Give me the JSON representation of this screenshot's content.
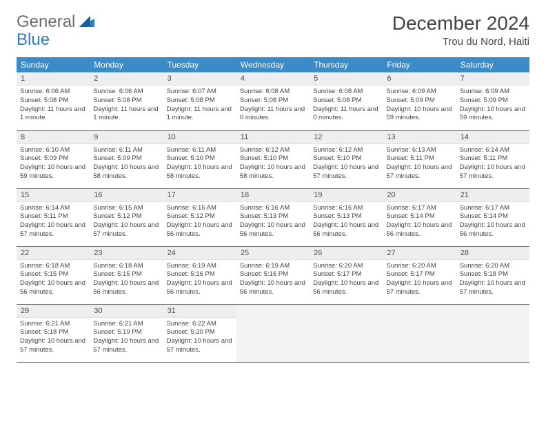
{
  "logo": {
    "text1": "General",
    "text2": "Blue"
  },
  "title": "December 2024",
  "location": "Trou du Nord, Haiti",
  "colors": {
    "header_bg": "#3b8bc9",
    "header_text": "#ffffff",
    "daynum_bg": "#eeeeee",
    "border": "#3b8bc9",
    "logo_gray": "#6c6c6c",
    "logo_blue": "#2f7fbf",
    "empty_bg": "#f3f3f3"
  },
  "weekdays": [
    "Sunday",
    "Monday",
    "Tuesday",
    "Wednesday",
    "Thursday",
    "Friday",
    "Saturday"
  ],
  "font": {
    "title_size": 28,
    "location_size": 15,
    "weekday_size": 12,
    "daynum_size": 11,
    "body_size": 9.5
  },
  "days": [
    {
      "n": 1,
      "sunrise": "6:06 AM",
      "sunset": "5:08 PM",
      "daylight": "11 hours and 1 minute."
    },
    {
      "n": 2,
      "sunrise": "6:06 AM",
      "sunset": "5:08 PM",
      "daylight": "11 hours and 1 minute."
    },
    {
      "n": 3,
      "sunrise": "6:07 AM",
      "sunset": "5:08 PM",
      "daylight": "11 hours and 1 minute."
    },
    {
      "n": 4,
      "sunrise": "6:08 AM",
      "sunset": "5:08 PM",
      "daylight": "11 hours and 0 minutes."
    },
    {
      "n": 5,
      "sunrise": "6:08 AM",
      "sunset": "5:08 PM",
      "daylight": "11 hours and 0 minutes."
    },
    {
      "n": 6,
      "sunrise": "6:09 AM",
      "sunset": "5:09 PM",
      "daylight": "10 hours and 59 minutes."
    },
    {
      "n": 7,
      "sunrise": "6:09 AM",
      "sunset": "5:09 PM",
      "daylight": "10 hours and 59 minutes."
    },
    {
      "n": 8,
      "sunrise": "6:10 AM",
      "sunset": "5:09 PM",
      "daylight": "10 hours and 59 minutes."
    },
    {
      "n": 9,
      "sunrise": "6:11 AM",
      "sunset": "5:09 PM",
      "daylight": "10 hours and 58 minutes."
    },
    {
      "n": 10,
      "sunrise": "6:11 AM",
      "sunset": "5:10 PM",
      "daylight": "10 hours and 58 minutes."
    },
    {
      "n": 11,
      "sunrise": "6:12 AM",
      "sunset": "5:10 PM",
      "daylight": "10 hours and 58 minutes."
    },
    {
      "n": 12,
      "sunrise": "6:12 AM",
      "sunset": "5:10 PM",
      "daylight": "10 hours and 57 minutes."
    },
    {
      "n": 13,
      "sunrise": "6:13 AM",
      "sunset": "5:11 PM",
      "daylight": "10 hours and 57 minutes."
    },
    {
      "n": 14,
      "sunrise": "6:14 AM",
      "sunset": "5:11 PM",
      "daylight": "10 hours and 57 minutes."
    },
    {
      "n": 15,
      "sunrise": "6:14 AM",
      "sunset": "5:11 PM",
      "daylight": "10 hours and 57 minutes."
    },
    {
      "n": 16,
      "sunrise": "6:15 AM",
      "sunset": "5:12 PM",
      "daylight": "10 hours and 57 minutes."
    },
    {
      "n": 17,
      "sunrise": "6:15 AM",
      "sunset": "5:12 PM",
      "daylight": "10 hours and 56 minutes."
    },
    {
      "n": 18,
      "sunrise": "6:16 AM",
      "sunset": "5:13 PM",
      "daylight": "10 hours and 56 minutes."
    },
    {
      "n": 19,
      "sunrise": "6:16 AM",
      "sunset": "5:13 PM",
      "daylight": "10 hours and 56 minutes."
    },
    {
      "n": 20,
      "sunrise": "6:17 AM",
      "sunset": "5:14 PM",
      "daylight": "10 hours and 56 minutes."
    },
    {
      "n": 21,
      "sunrise": "6:17 AM",
      "sunset": "5:14 PM",
      "daylight": "10 hours and 56 minutes."
    },
    {
      "n": 22,
      "sunrise": "6:18 AM",
      "sunset": "5:15 PM",
      "daylight": "10 hours and 56 minutes."
    },
    {
      "n": 23,
      "sunrise": "6:18 AM",
      "sunset": "5:15 PM",
      "daylight": "10 hours and 56 minutes."
    },
    {
      "n": 24,
      "sunrise": "6:19 AM",
      "sunset": "5:16 PM",
      "daylight": "10 hours and 56 minutes."
    },
    {
      "n": 25,
      "sunrise": "6:19 AM",
      "sunset": "5:16 PM",
      "daylight": "10 hours and 56 minutes."
    },
    {
      "n": 26,
      "sunrise": "6:20 AM",
      "sunset": "5:17 PM",
      "daylight": "10 hours and 56 minutes."
    },
    {
      "n": 27,
      "sunrise": "6:20 AM",
      "sunset": "5:17 PM",
      "daylight": "10 hours and 57 minutes."
    },
    {
      "n": 28,
      "sunrise": "6:20 AM",
      "sunset": "5:18 PM",
      "daylight": "10 hours and 57 minutes."
    },
    {
      "n": 29,
      "sunrise": "6:21 AM",
      "sunset": "5:18 PM",
      "daylight": "10 hours and 57 minutes."
    },
    {
      "n": 30,
      "sunrise": "6:21 AM",
      "sunset": "5:19 PM",
      "daylight": "10 hours and 57 minutes."
    },
    {
      "n": 31,
      "sunrise": "6:22 AM",
      "sunset": "5:20 PM",
      "daylight": "10 hours and 57 minutes."
    }
  ],
  "labels": {
    "sunrise": "Sunrise:",
    "sunset": "Sunset:",
    "daylight": "Daylight:"
  }
}
